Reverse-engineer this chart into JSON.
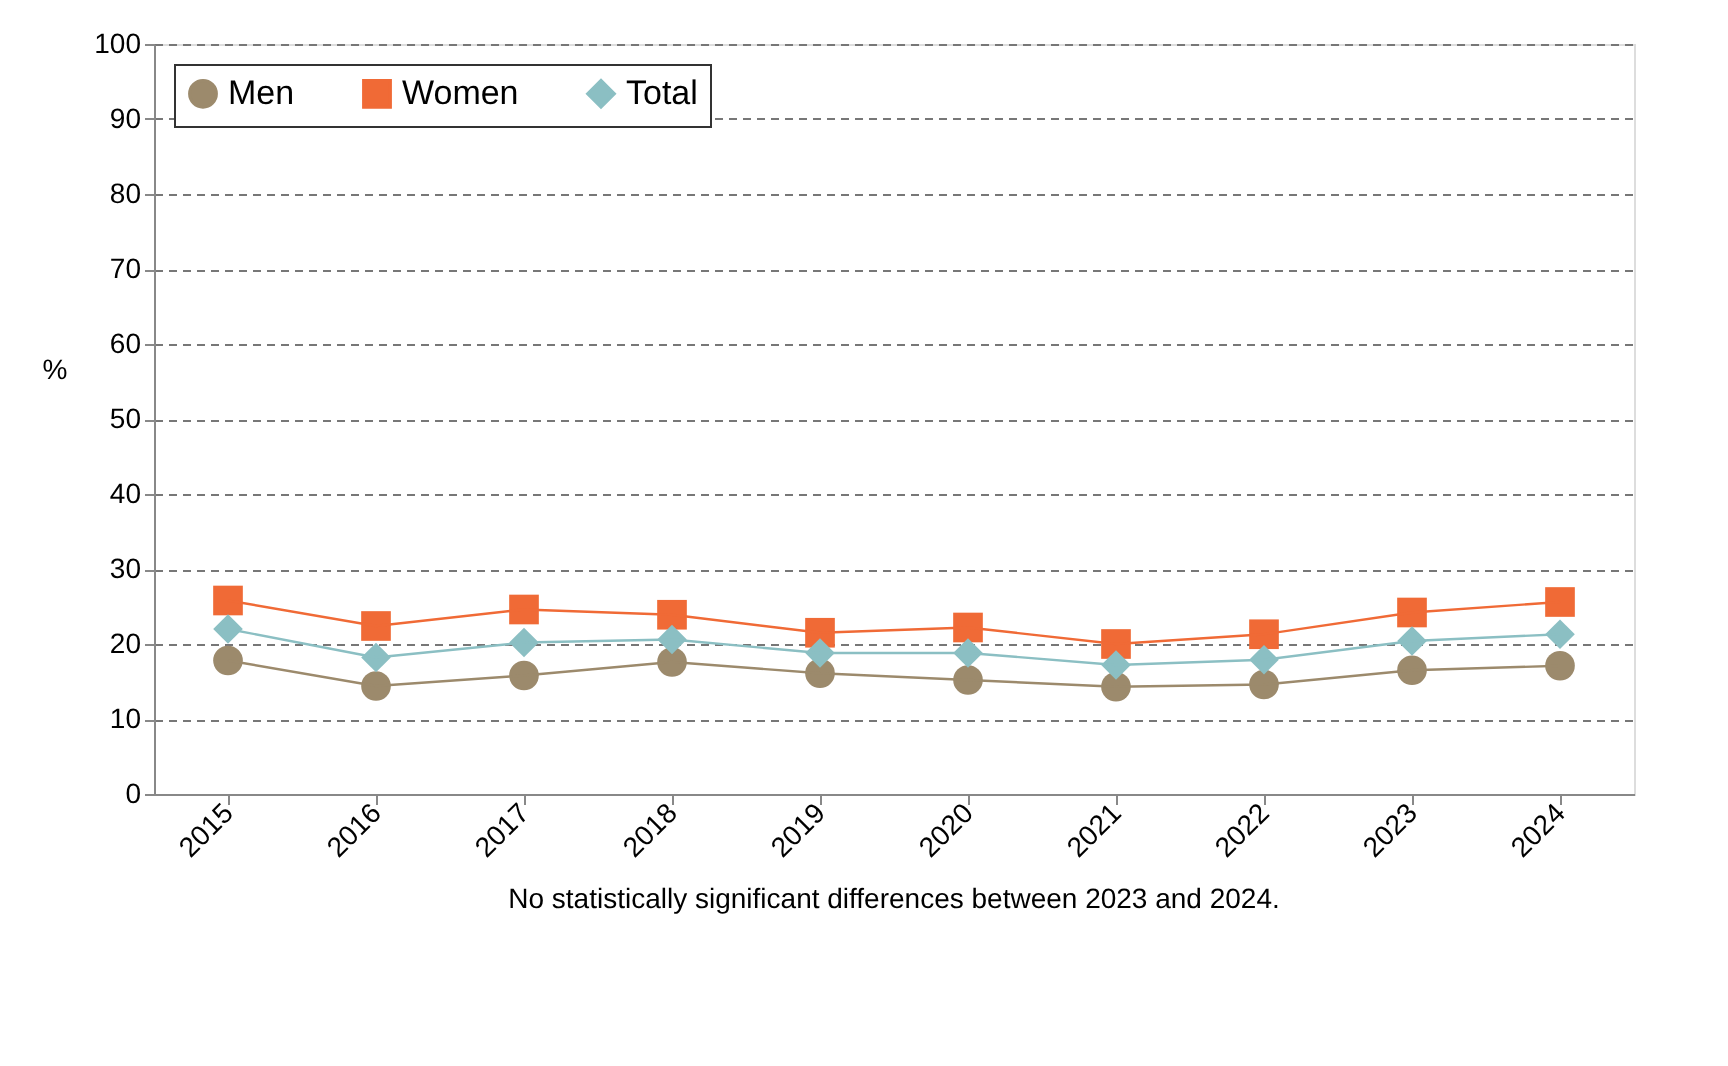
{
  "chart_data": {
    "type": "line",
    "categories": [
      "2015",
      "2016",
      "2017",
      "2018",
      "2019",
      "2020",
      "2021",
      "2022",
      "2023",
      "2024"
    ],
    "series": [
      {
        "name": "Men",
        "color": "#9c8a6c",
        "marker": "circle",
        "values": [
          17.8,
          14.4,
          15.8,
          17.6,
          16.1,
          15.2,
          14.3,
          14.6,
          16.5,
          17.1
        ]
      },
      {
        "name": "Women",
        "color": "#f06a36",
        "marker": "square",
        "values": [
          25.8,
          22.4,
          24.6,
          23.9,
          21.5,
          22.2,
          20.0,
          21.3,
          24.2,
          25.6
        ]
      },
      {
        "name": "Total",
        "color": "#8bbfc3",
        "marker": "diamond",
        "values": [
          22.0,
          18.2,
          20.2,
          20.6,
          18.8,
          18.8,
          17.2,
          17.9,
          20.4,
          21.3
        ]
      }
    ],
    "ylabel": "%",
    "ylim": [
      0,
      100
    ],
    "yticks": [
      0,
      10,
      20,
      30,
      40,
      50,
      60,
      70,
      80,
      90,
      100
    ],
    "grid": "y",
    "legend": "top left",
    "line_style": "solid",
    "annotations": [
      "No statistically significant differences between 2023 and 2024."
    ]
  }
}
